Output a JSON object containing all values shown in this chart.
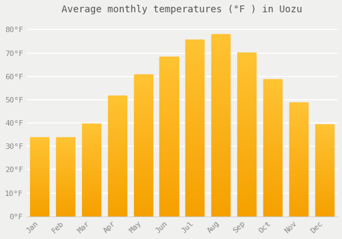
{
  "title": "Average monthly temperatures (°F ) in Uozu",
  "months": [
    "Jan",
    "Feb",
    "Mar",
    "Apr",
    "May",
    "Jun",
    "Jul",
    "Aug",
    "Sep",
    "Oct",
    "Nov",
    "Dec"
  ],
  "values": [
    33.8,
    34.0,
    39.7,
    51.6,
    60.8,
    68.4,
    75.7,
    78.1,
    70.2,
    58.8,
    48.7,
    39.4
  ],
  "bar_color_top": "#FFC333",
  "bar_color_bottom": "#F5A000",
  "background_color": "#f0f0ee",
  "grid_color": "#ffffff",
  "text_color": "#888888",
  "title_color": "#555555",
  "ylim": [
    0,
    85
  ],
  "yticks": [
    0,
    10,
    20,
    30,
    40,
    50,
    60,
    70,
    80
  ],
  "ytick_labels": [
    "0°F",
    "10°F",
    "20°F",
    "30°F",
    "40°F",
    "50°F",
    "60°F",
    "70°F",
    "80°F"
  ],
  "title_fontsize": 10,
  "tick_fontsize": 8
}
